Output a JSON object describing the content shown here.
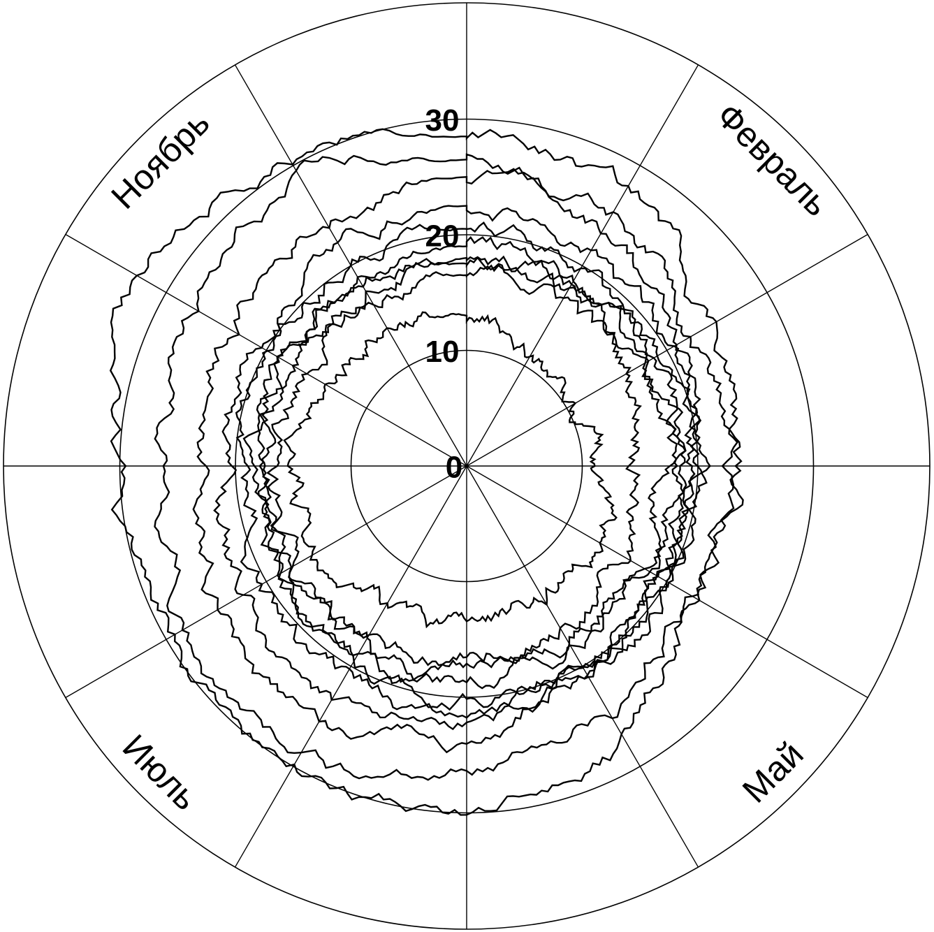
{
  "chart_data": {
    "type": "polar-line",
    "title": "",
    "radial_axis": {
      "range": [
        0,
        30
      ],
      "ticks": [
        0,
        10,
        20,
        30
      ]
    },
    "angular_axis": {
      "direction": "clockwise",
      "zero_at": "top",
      "spokes_deg_step": 30,
      "labels": [
        {
          "text": "Февраль",
          "angle_deg": 45
        },
        {
          "text": "Май",
          "angle_deg": 135
        },
        {
          "text": "Июль",
          "angle_deg": 225
        },
        {
          "text": "Ноябрь",
          "angle_deg": 315
        }
      ]
    },
    "grid": true,
    "series_profiles": [
      [
        13.0,
        11.5,
        10.5,
        12.0,
        13.5,
        13.0,
        12.5,
        13.5,
        15.0,
        15.0,
        13.5,
        14.0
      ],
      [
        16.5,
        17.0,
        16.0,
        15.5,
        15.5,
        16.0,
        17.5,
        18.0,
        17.5,
        16.5,
        16.0,
        16.0
      ],
      [
        18.0,
        18.5,
        18.5,
        17.5,
        17.0,
        17.5,
        18.5,
        19.0,
        18.5,
        17.5,
        17.5,
        17.5
      ],
      [
        17.5,
        17.5,
        17.5,
        18.5,
        18.5,
        18.5,
        18.0,
        17.5,
        17.0,
        17.0,
        17.5,
        17.5
      ],
      [
        19.0,
        19.0,
        18.5,
        18.5,
        19.0,
        20.0,
        20.5,
        20.0,
        19.0,
        18.5,
        18.5,
        19.0
      ],
      [
        20.5,
        20.0,
        19.5,
        19.5,
        19.0,
        20.0,
        21.0,
        21.0,
        20.5,
        19.5,
        19.5,
        20.0
      ],
      [
        22.5,
        22.0,
        20.5,
        19.0,
        19.0,
        20.5,
        22.5,
        23.0,
        22.5,
        21.0,
        21.0,
        22.0
      ],
      [
        25.0,
        24.0,
        21.0,
        19.5,
        19.5,
        21.0,
        24.0,
        25.0,
        24.5,
        23.0,
        23.5,
        24.5
      ],
      [
        26.5,
        25.5,
        23.5,
        22.5,
        22.0,
        24.5,
        27.5,
        28.0,
        27.5,
        26.0,
        27.0,
        28.0
      ],
      [
        28.5,
        27.5,
        25.0,
        23.0,
        23.5,
        27.0,
        30.0,
        30.5,
        30.0,
        29.5,
        32.0,
        30.5
      ]
    ],
    "noise_amplitude": 1.2,
    "samples_per_series": 360
  }
}
